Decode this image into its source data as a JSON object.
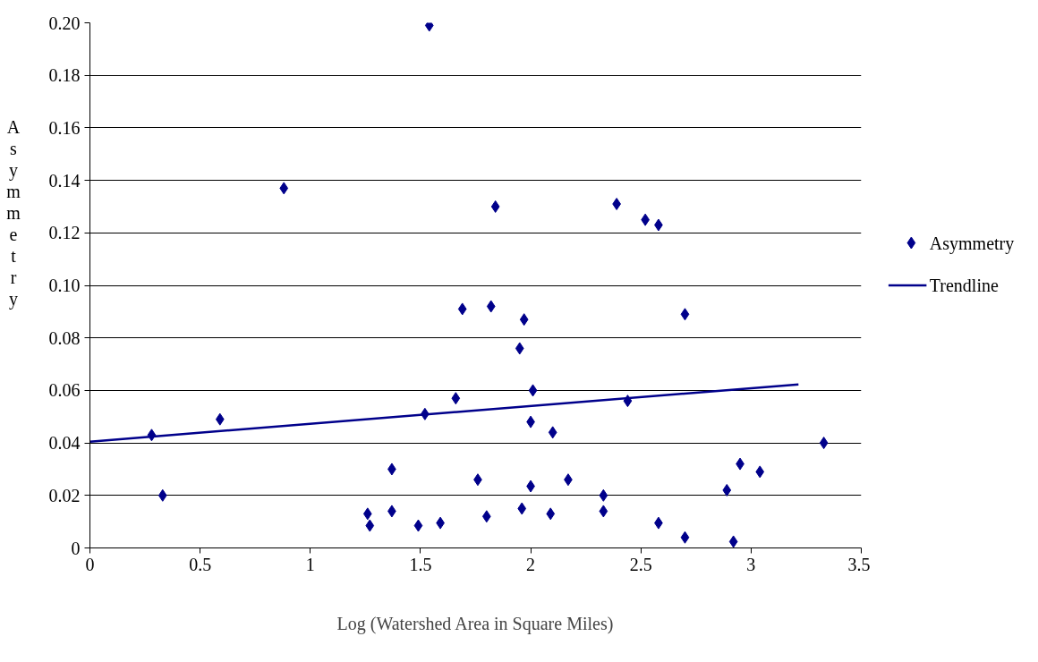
{
  "chart_data": {
    "type": "scatter",
    "xlabel": "Log (Watershed Area in Square Miles)",
    "ylabel": "Asymmetry",
    "xlim": [
      0,
      3.5
    ],
    "xticks": [
      0,
      0.5,
      1,
      1.5,
      2,
      2.5,
      3,
      3.5
    ],
    "ylim": [
      0,
      0.2
    ],
    "yticks": [
      0,
      {
        "value": 0.02,
        "label": "0.02"
      },
      {
        "value": 0.04,
        "label": "0.04"
      },
      {
        "value": 0.06,
        "label": "0.06"
      },
      {
        "value": 0.08,
        "label": "0.08"
      },
      {
        "value": 0.1,
        "label": "0.10"
      },
      {
        "value": 0.12,
        "label": "0.12"
      },
      {
        "value": 0.14,
        "label": "0.14"
      },
      {
        "value": 0.16,
        "label": "0.16"
      },
      {
        "value": 0.18,
        "label": "0.18"
      },
      {
        "value": 0.2,
        "label": "0.20"
      }
    ],
    "grid": "y",
    "legend": "right",
    "series": [
      {
        "name": "Asymmetry",
        "marker": "diamond",
        "color": "#00008b",
        "x": [
          0.28,
          0.33,
          0.59,
          0.88,
          1.26,
          1.27,
          1.37,
          1.37,
          1.49,
          1.52,
          1.54,
          1.59,
          1.66,
          1.69,
          1.76,
          1.8,
          1.82,
          1.84,
          1.95,
          1.96,
          1.97,
          2.0,
          2.0,
          2.01,
          2.09,
          2.1,
          2.17,
          2.33,
          2.33,
          2.39,
          2.44,
          2.52,
          2.58,
          2.58,
          2.7,
          2.7,
          2.89,
          2.92,
          2.95,
          3.04,
          3.33
        ],
        "values": [
          0.043,
          0.02,
          0.049,
          0.137,
          0.013,
          0.0085,
          0.03,
          0.014,
          0.0085,
          0.051,
          0.199,
          0.0095,
          0.057,
          0.091,
          0.026,
          0.012,
          0.092,
          0.13,
          0.076,
          0.015,
          0.087,
          0.0235,
          0.048,
          0.06,
          0.013,
          0.044,
          0.026,
          0.02,
          0.014,
          0.131,
          0.056,
          0.125,
          0.123,
          0.0095,
          0.089,
          0.004,
          0.022,
          0.0024,
          0.032,
          0.029,
          0.04
        ]
      },
      {
        "name": "Trendline",
        "type": "line",
        "color": "#00008b",
        "x": [
          0,
          3.215
        ],
        "values": [
          0.0405,
          0.0623
        ]
      }
    ]
  }
}
